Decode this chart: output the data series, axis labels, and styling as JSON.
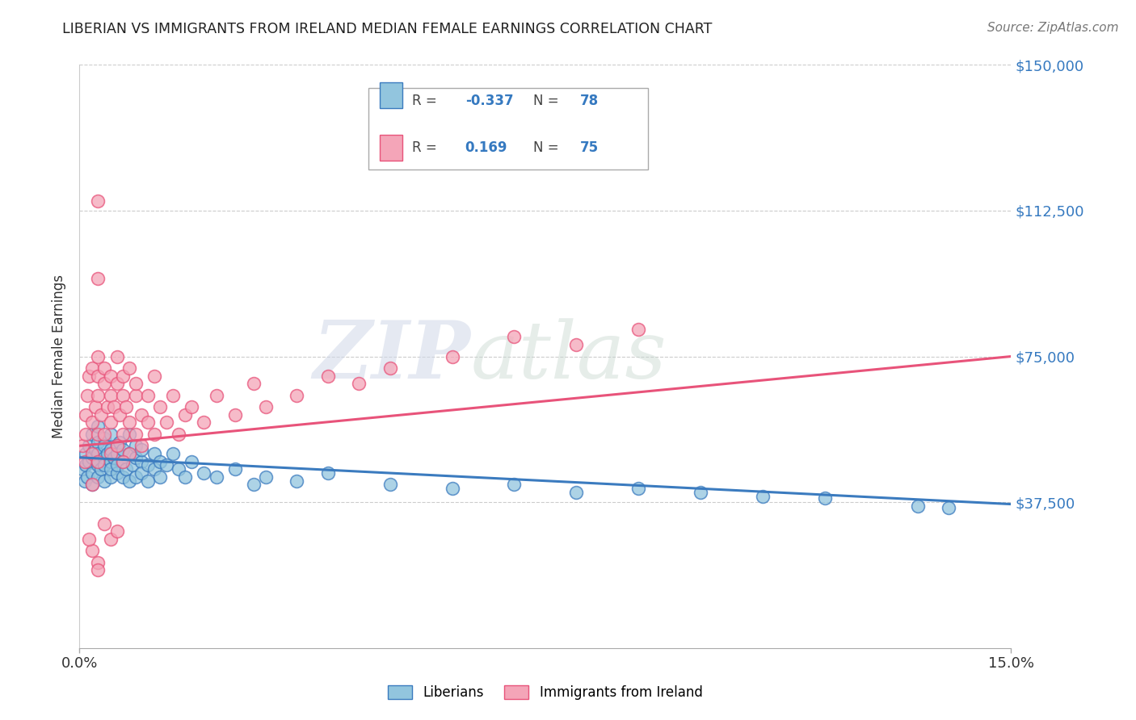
{
  "title": "LIBERIAN VS IMMIGRANTS FROM IRELAND MEDIAN FEMALE EARNINGS CORRELATION CHART",
  "source": "Source: ZipAtlas.com",
  "ylabel": "Median Female Earnings",
  "xlim": [
    0.0,
    0.15
  ],
  "ylim": [
    0,
    150000
  ],
  "yticks": [
    0,
    37500,
    75000,
    112500,
    150000
  ],
  "ytick_labels": [
    "",
    "$37,500",
    "$75,000",
    "$112,500",
    "$150,000"
  ],
  "xtick_labels": [
    "0.0%",
    "15.0%"
  ],
  "blue_R": -0.337,
  "blue_N": 78,
  "pink_R": 0.169,
  "pink_N": 75,
  "blue_color": "#92c5de",
  "pink_color": "#f4a5b8",
  "blue_line_color": "#3b7bbf",
  "pink_line_color": "#e8537a",
  "label_color": "#3579c0",
  "watermark_zip": "ZIP",
  "watermark_atlas": "atlas",
  "legend_label_blue": "Liberians",
  "legend_label_pink": "Immigrants from Ireland",
  "blue_scatter_x": [
    0.0005,
    0.0008,
    0.001,
    0.001,
    0.0012,
    0.0015,
    0.0015,
    0.002,
    0.002,
    0.002,
    0.002,
    0.0025,
    0.003,
    0.003,
    0.003,
    0.003,
    0.003,
    0.0035,
    0.004,
    0.004,
    0.004,
    0.004,
    0.004,
    0.0045,
    0.005,
    0.005,
    0.005,
    0.005,
    0.005,
    0.0055,
    0.006,
    0.006,
    0.006,
    0.006,
    0.0065,
    0.007,
    0.007,
    0.007,
    0.0075,
    0.008,
    0.008,
    0.008,
    0.0085,
    0.009,
    0.009,
    0.009,
    0.01,
    0.01,
    0.01,
    0.011,
    0.011,
    0.012,
    0.012,
    0.013,
    0.013,
    0.014,
    0.015,
    0.016,
    0.017,
    0.018,
    0.02,
    0.022,
    0.025,
    0.028,
    0.03,
    0.035,
    0.04,
    0.05,
    0.06,
    0.07,
    0.08,
    0.09,
    0.1,
    0.11,
    0.12,
    0.135,
    0.14,
    0.003
  ],
  "blue_scatter_y": [
    46000,
    43000,
    50000,
    47000,
    44000,
    52000,
    48000,
    55000,
    42000,
    49000,
    45000,
    51000,
    53000,
    47000,
    44000,
    50000,
    48000,
    46000,
    54000,
    49000,
    43000,
    52000,
    47000,
    50000,
    55000,
    48000,
    44000,
    51000,
    46000,
    49000,
    52000,
    45000,
    50000,
    47000,
    53000,
    48000,
    44000,
    51000,
    46000,
    50000,
    43000,
    55000,
    47000,
    49000,
    44000,
    52000,
    48000,
    45000,
    51000,
    47000,
    43000,
    50000,
    46000,
    48000,
    44000,
    47000,
    50000,
    46000,
    44000,
    48000,
    45000,
    44000,
    46000,
    42000,
    44000,
    43000,
    45000,
    42000,
    41000,
    42000,
    40000,
    41000,
    40000,
    39000,
    38500,
    36500,
    36000,
    57000
  ],
  "pink_scatter_x": [
    0.0005,
    0.0008,
    0.001,
    0.001,
    0.0012,
    0.0015,
    0.002,
    0.002,
    0.002,
    0.0025,
    0.003,
    0.003,
    0.003,
    0.003,
    0.003,
    0.0035,
    0.004,
    0.004,
    0.004,
    0.0045,
    0.005,
    0.005,
    0.005,
    0.005,
    0.0055,
    0.006,
    0.006,
    0.006,
    0.0065,
    0.007,
    0.007,
    0.007,
    0.0075,
    0.008,
    0.008,
    0.008,
    0.009,
    0.009,
    0.009,
    0.01,
    0.01,
    0.011,
    0.011,
    0.012,
    0.012,
    0.013,
    0.014,
    0.015,
    0.016,
    0.017,
    0.018,
    0.02,
    0.022,
    0.025,
    0.028,
    0.03,
    0.035,
    0.04,
    0.045,
    0.05,
    0.06,
    0.07,
    0.08,
    0.09,
    0.003,
    0.004,
    0.005,
    0.006,
    0.007,
    0.002,
    0.002,
    0.003,
    0.0015,
    0.003,
    0.003
  ],
  "pink_scatter_y": [
    52000,
    48000,
    60000,
    55000,
    65000,
    70000,
    72000,
    58000,
    50000,
    62000,
    75000,
    65000,
    55000,
    48000,
    70000,
    60000,
    68000,
    55000,
    72000,
    62000,
    65000,
    50000,
    70000,
    58000,
    62000,
    68000,
    52000,
    75000,
    60000,
    65000,
    55000,
    70000,
    62000,
    58000,
    72000,
    50000,
    65000,
    55000,
    68000,
    60000,
    52000,
    65000,
    58000,
    70000,
    55000,
    62000,
    58000,
    65000,
    55000,
    60000,
    62000,
    58000,
    65000,
    60000,
    68000,
    62000,
    65000,
    70000,
    68000,
    72000,
    75000,
    80000,
    78000,
    82000,
    95000,
    32000,
    28000,
    30000,
    48000,
    42000,
    25000,
    22000,
    28000,
    115000,
    20000
  ]
}
